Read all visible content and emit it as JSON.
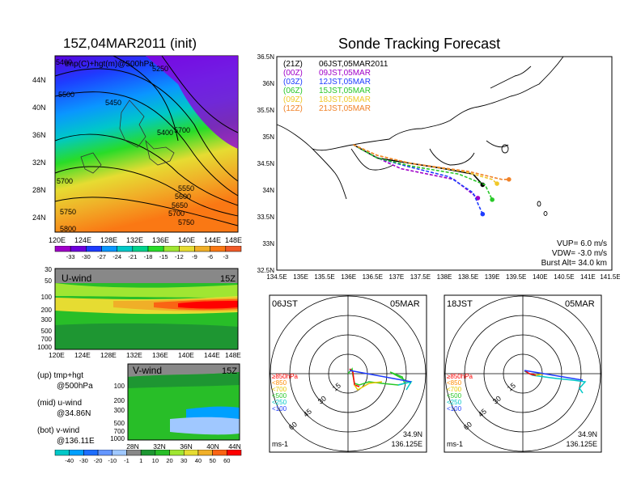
{
  "left_panel": {
    "title": "15Z,04MAR2011 (init)",
    "map_label": "tmp(C)+hgt(m)@500hPa",
    "lat_ticks": [
      "44N",
      "40N",
      "36N",
      "32N",
      "28N",
      "24N"
    ],
    "lon_ticks": [
      "120E",
      "124E",
      "128E",
      "132E",
      "136E",
      "140E",
      "144E",
      "148E"
    ],
    "contour_labels": [
      "5400",
      "5250",
      "5500",
      "5450",
      "5400",
      "5700",
      "5550",
      "5600",
      "5650",
      "5700",
      "5750",
      "5750",
      "5800",
      "5700"
    ],
    "temp_colorbar": {
      "labels": [
        "-33",
        "-30",
        "-27",
        "-24",
        "-21",
        "-18",
        "-15",
        "-12",
        "-9",
        "-6",
        "-3"
      ],
      "colors": [
        "#a000c8",
        "#6e00dc",
        "#1e3cff",
        "#0a96ff",
        "#00c8c8",
        "#00d28c",
        "#28dc28",
        "#a0e632",
        "#e6dc32",
        "#f0af28",
        "#fa7814",
        "#f05a28"
      ]
    },
    "u_wind": {
      "label": "U-wind",
      "time": "15Z",
      "y_ticks": [
        "30",
        "50",
        "100",
        "200",
        "300",
        "500",
        "700",
        "1000"
      ]
    },
    "v_wind": {
      "label": "V-wind",
      "time": "15Z",
      "y_ticks": [
        "100",
        "200",
        "300",
        "500",
        "700",
        "1000"
      ],
      "x_ticks": [
        "28N",
        "32N",
        "36N",
        "40N",
        "44N"
      ]
    },
    "wind_colorbar": {
      "labels": [
        "-40",
        "-30",
        "-20",
        "-10",
        "-1",
        "1",
        "10",
        "20",
        "30",
        "40",
        "50",
        "60"
      ],
      "colors": [
        "#00c8c8",
        "#00a0ff",
        "#1e6eff",
        "#6496ff",
        "#a0c8ff",
        "#888888",
        "#1e9632",
        "#28be28",
        "#a0e632",
        "#e6dc32",
        "#f0af28",
        "#fa6414",
        "#ff0000"
      ]
    },
    "legend_notes": [
      "(up) tmp+hgt",
      "@500hPa",
      "(mid) u-wind",
      "@34.86N",
      "(bot) v-wind",
      "@136.11E"
    ]
  },
  "right_panel": {
    "title": "Sonde Tracking Forecast",
    "track_legend": [
      {
        "code": "(21Z)",
        "label": "06JST,05MAR2011",
        "color": "#000000"
      },
      {
        "code": "(00Z)",
        "label": "09JST,05MAR",
        "color": "#a000c8"
      },
      {
        "code": "(03Z)",
        "label": "12JST,05MAR",
        "color": "#1e3cff"
      },
      {
        "code": "(06Z)",
        "label": "15JST,05MAR",
        "color": "#28c828"
      },
      {
        "code": "(09Z)",
        "label": "18JST,05MAR",
        "color": "#f0c828"
      },
      {
        "code": "(12Z)",
        "label": "21JST,05MAR",
        "color": "#f08228"
      }
    ],
    "lat_ticks": [
      "36.5N",
      "36N",
      "35.5N",
      "35N",
      "34.5N",
      "34N",
      "33.5N",
      "33N",
      "32.5N"
    ],
    "lon_ticks": [
      "134.5E",
      "135E",
      "135.5E",
      "136E",
      "136.5E",
      "137E",
      "137.5E",
      "138E",
      "138.5E",
      "139E",
      "139.5E",
      "140E",
      "140.5E",
      "141E",
      "141.5E"
    ],
    "params": [
      "VUP=  6.0  m/s",
      "VDW= -3.0  m/s",
      "Burst Alt= 34.0  km"
    ],
    "hodographs": [
      {
        "time": "06JST",
        "date": "05MAR",
        "unit": "ms-1",
        "lat": "34.9N",
        "lon": "136.125E"
      },
      {
        "time": "18JST",
        "date": "05MAR",
        "unit": "ms-1",
        "lat": "34.9N",
        "lon": "136.125E"
      }
    ],
    "hodo_legend": [
      "≥850hPa",
      "<850",
      "<700",
      "<500",
      "<250",
      "<100"
    ],
    "hodo_legend_colors": [
      "#ff0000",
      "#ff8c00",
      "#e6c800",
      "#28c828",
      "#00c8c8",
      "#1e3cff"
    ],
    "ring_labels": [
      "15",
      "30",
      "45",
      "60"
    ]
  },
  "chart_data": {
    "type": "line",
    "title": "Sonde Tracking Forecast",
    "xlabel": "",
    "ylabel": "",
    "xlim": [
      134.5,
      141.5
    ],
    "ylim": [
      32.5,
      36.5
    ],
    "series": [
      {
        "name": "(21Z) 06JST,05MAR2011",
        "x": [
          136.1,
          136.6,
          137.3,
          138.0,
          138.6,
          138.8
        ],
        "y": [
          34.85,
          34.6,
          34.5,
          34.4,
          34.3,
          34.1
        ]
      },
      {
        "name": "(00Z) 09JST,05MAR",
        "x": [
          136.1,
          136.5,
          136.85,
          137.1,
          138.2,
          138.7
        ],
        "y": [
          34.85,
          34.65,
          34.5,
          34.4,
          34.2,
          33.85
        ]
      },
      {
        "name": "(03Z) 12JST,05MAR",
        "x": [
          136.1,
          136.6,
          137.2,
          138.1,
          138.6,
          138.8
        ],
        "y": [
          34.85,
          34.6,
          34.45,
          34.25,
          33.95,
          33.55
        ]
      },
      {
        "name": "(06Z) 15JST,05MAR",
        "x": [
          136.1,
          136.6,
          137.3,
          138.3,
          138.85,
          139.0
        ],
        "y": [
          34.85,
          34.6,
          34.45,
          34.3,
          34.1,
          33.82
        ]
      },
      {
        "name": "(09Z) 18JST,05MAR",
        "x": [
          136.1,
          136.6,
          137.3,
          138.4,
          139.0,
          139.1
        ],
        "y": [
          34.85,
          34.65,
          34.5,
          34.35,
          34.2,
          34.12
        ]
      },
      {
        "name": "(12Z) 21JST,05MAR",
        "x": [
          136.1,
          136.6,
          137.3,
          138.5,
          139.2,
          139.35
        ],
        "y": [
          34.85,
          34.65,
          34.5,
          34.35,
          34.2,
          34.2
        ]
      }
    ]
  }
}
